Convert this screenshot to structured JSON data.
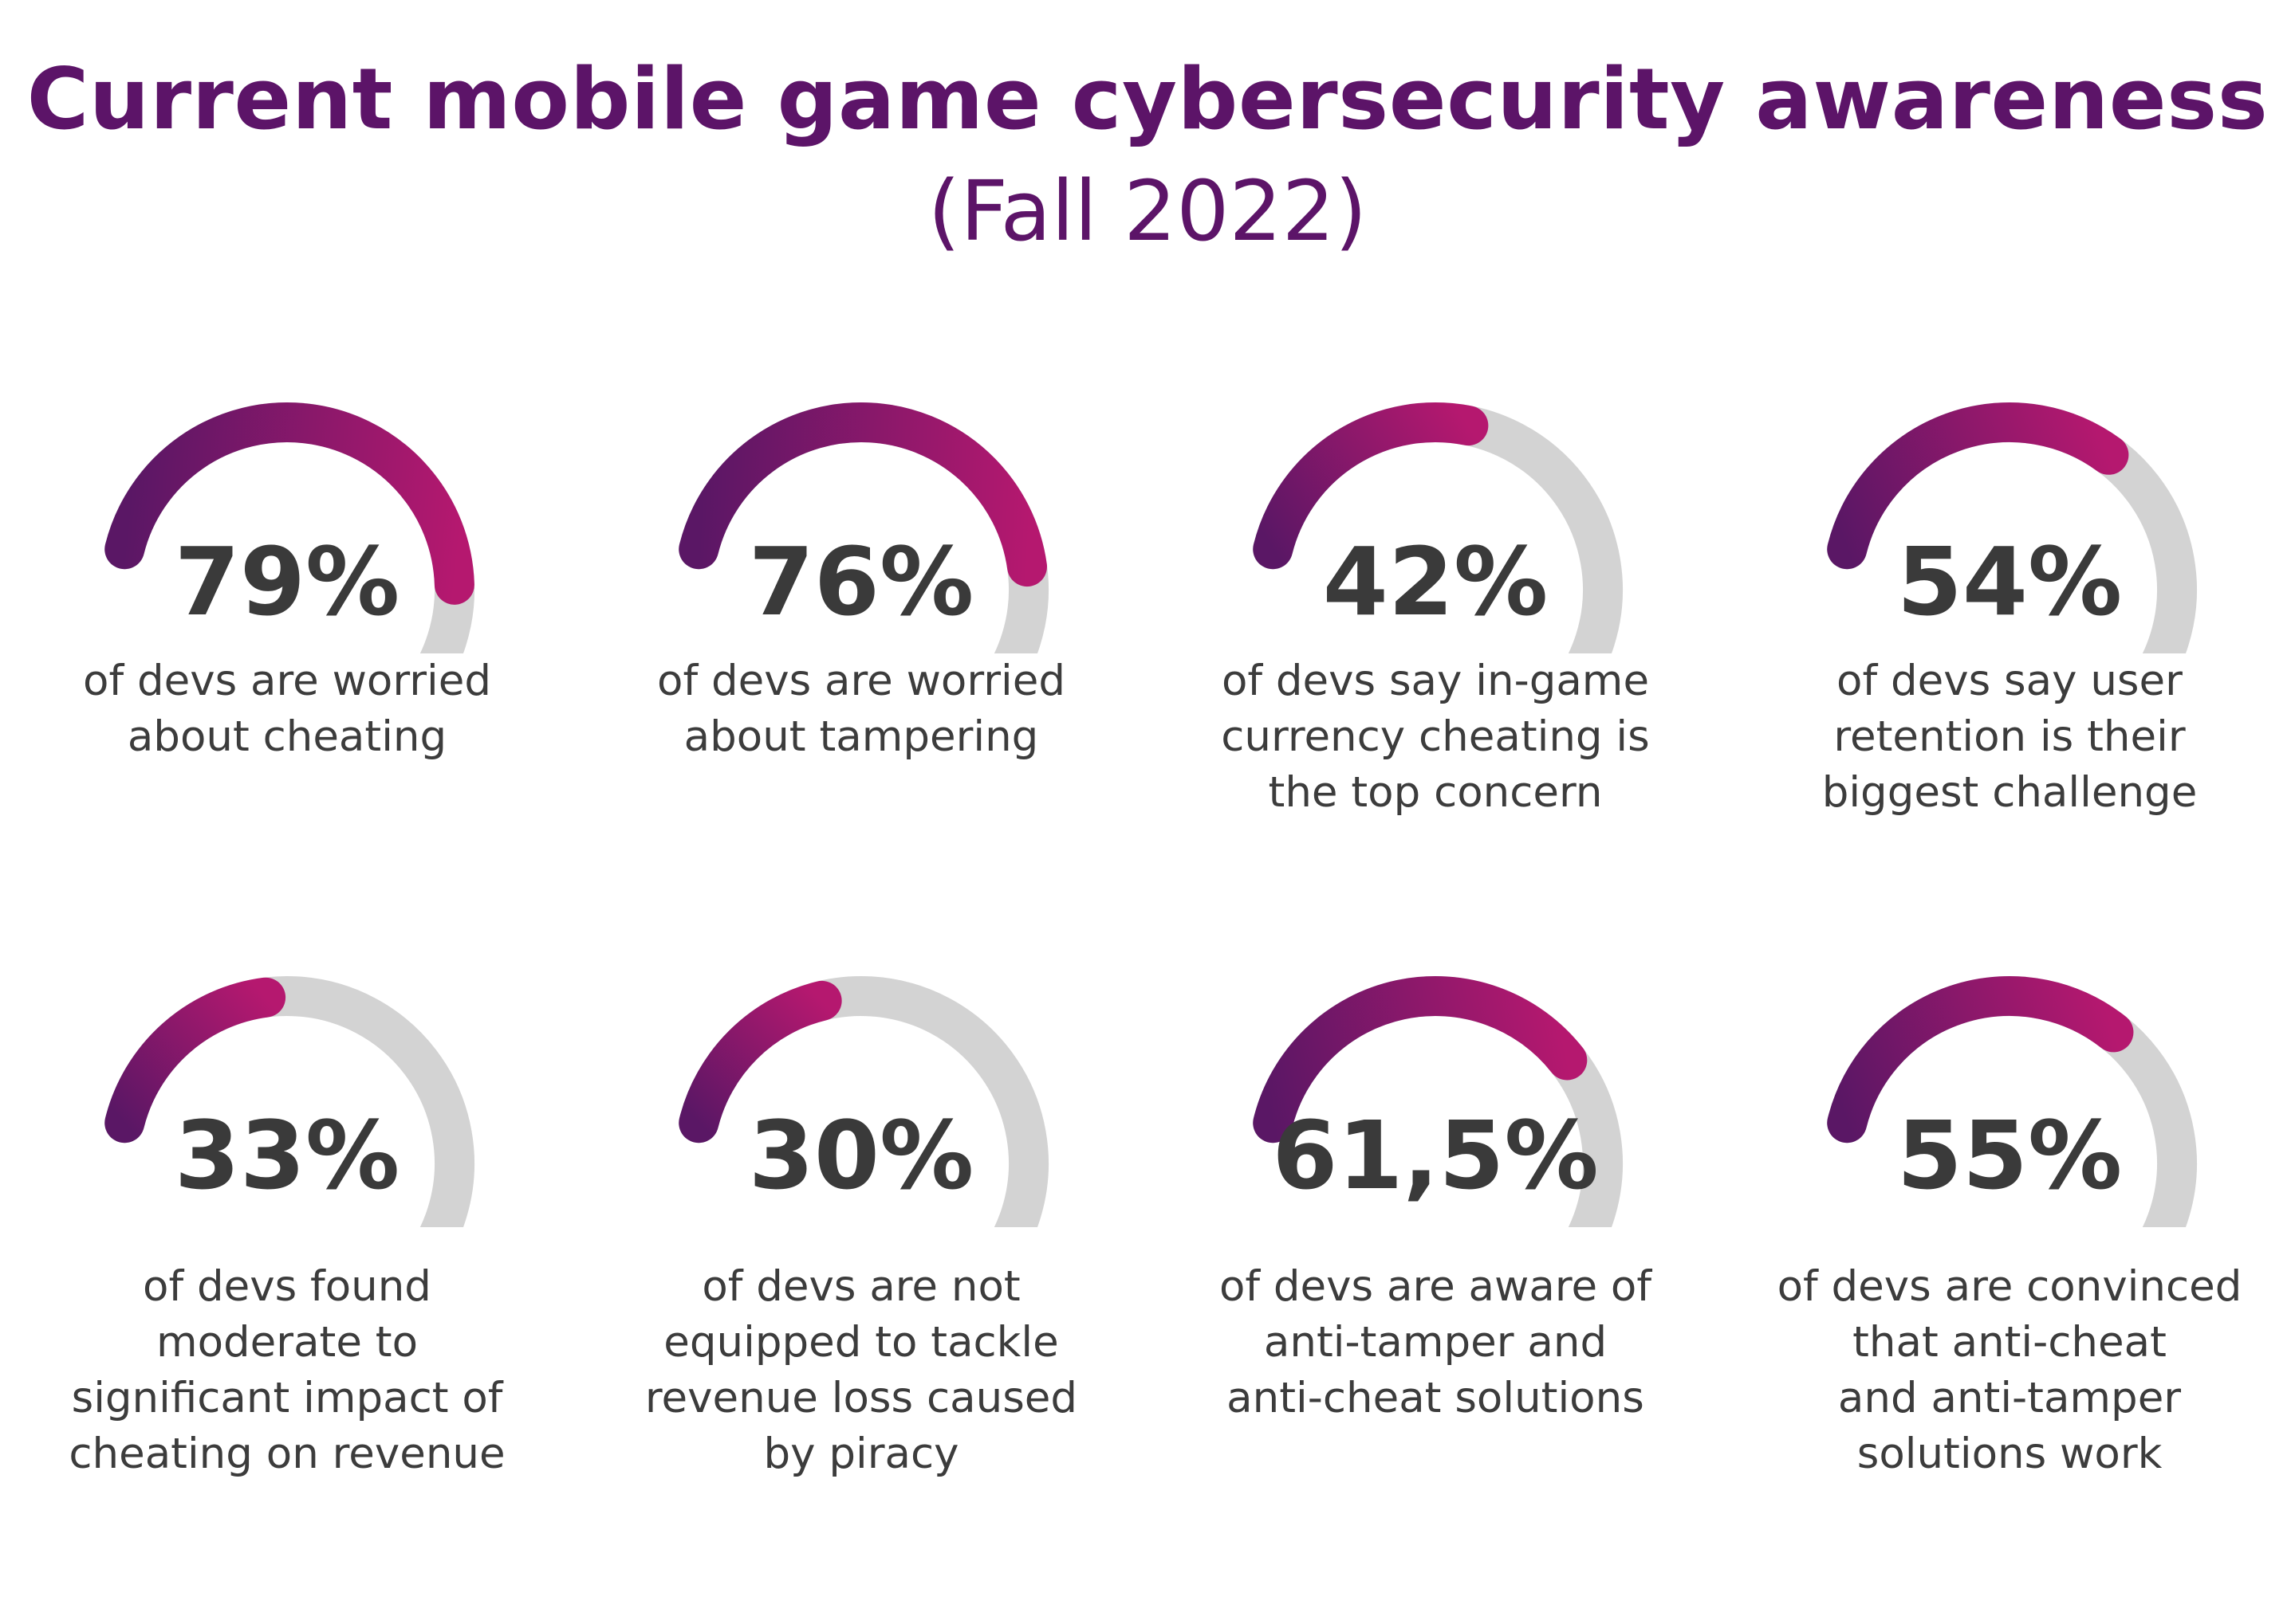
{
  "title": "Current mobile game cybersecurity awareness",
  "subtitle": "(Fall 2022)",
  "colors": {
    "title": "#5c1468",
    "arc_start": "#5a1765",
    "arc_end": "#b5186f",
    "track": "#d3d3d3",
    "percent_text": "#3a3a3a",
    "caption_text": "#3c3c3c"
  },
  "chart_data": {
    "type": "gauge",
    "title": "Current mobile game cybersecurity awareness",
    "subtitle": "(Fall 2022)",
    "unit": "%",
    "range": [
      0,
      100
    ],
    "items": [
      {
        "label": "79%",
        "value": 79,
        "caption": [
          "of devs are worried",
          "about cheating"
        ]
      },
      {
        "label": "76%",
        "value": 76,
        "caption": [
          "of devs are worried",
          "about tampering"
        ]
      },
      {
        "label": "42%",
        "value": 42,
        "caption": [
          "of devs say in-game",
          "currency cheating is",
          "the top concern"
        ]
      },
      {
        "label": "54%",
        "value": 54,
        "caption": [
          "of devs say user",
          "retention is their",
          "biggest challenge"
        ]
      },
      {
        "label": "33%",
        "value": 33,
        "caption": [
          "of devs found",
          "moderate to",
          "significant impact of",
          "cheating on revenue"
        ]
      },
      {
        "label": "30%",
        "value": 30,
        "caption": [
          "of devs are not",
          "equipped to tackle",
          "revenue loss caused",
          "by piracy"
        ]
      },
      {
        "label": "61,5%",
        "value": 61.5,
        "caption": [
          "of devs are aware of",
          "anti-tamper and",
          "anti-cheat solutions"
        ]
      },
      {
        "label": "55%",
        "value": 55,
        "caption": [
          "of devs are convinced",
          "that anti-cheat",
          "and anti-tamper",
          "solutions work"
        ]
      }
    ]
  }
}
